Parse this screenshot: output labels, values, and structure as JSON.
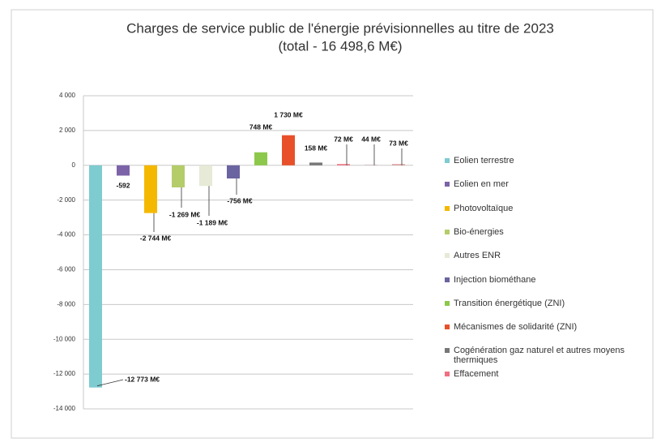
{
  "chart_data": {
    "type": "bar",
    "title": "Charges de service public de l'énergie prévisionnelles au titre de 2023",
    "subtitle": "(total - 16 498,6 M€)",
    "categories": [
      "Eolien terrestre",
      "Eolien en mer",
      "Photovoltaïque",
      "Bio-énergies",
      "Autres ENR",
      "Injection biométhane",
      "Transition énergétique (ZNI)",
      "Mécanismes de solidarité (ZNI)",
      "Cogénération gaz naturel et autres moyens thermiques",
      "Effacement",
      null,
      null
    ],
    "values": [
      -12773,
      -592,
      -2744,
      -1269,
      -1189,
      -756,
      748,
      1730,
      158,
      72,
      44,
      73
    ],
    "value_labels": [
      "-12 773 M€",
      "-592",
      "-2 744 M€",
      "-1 269 M€",
      "-1 189 M€",
      "-756 M€",
      "748 M€",
      "1 730 M€",
      "158 M€",
      "72 M€",
      "44 M€",
      "73 M€"
    ],
    "colors": [
      "#7ecbd0",
      "#7c63a8",
      "#f5b800",
      "#b5cc6a",
      "#e6ead6",
      "#6a64a0",
      "#8cc84b",
      "#e8502a",
      "#777777",
      "#f07080",
      "#d8c4c4",
      "#e0a0a0"
    ],
    "ylim": [
      -14000,
      4000
    ],
    "yticks": [
      {
        "value": -14000,
        "label": "-14 000"
      },
      {
        "value": -12000,
        "label": "-12 000"
      },
      {
        "value": -10000,
        "label": "-10 000"
      },
      {
        "value": -8000,
        "label": "-8 000"
      },
      {
        "value": -6000,
        "label": "-6 000"
      },
      {
        "value": -4000,
        "label": "-4 000"
      },
      {
        "value": -2000,
        "label": "-2 000"
      },
      0,
      {
        "value": 2000,
        "label": "2 000"
      },
      {
        "value": 4000,
        "label": "4 000"
      }
    ],
    "grid": true,
    "legend": "right"
  }
}
